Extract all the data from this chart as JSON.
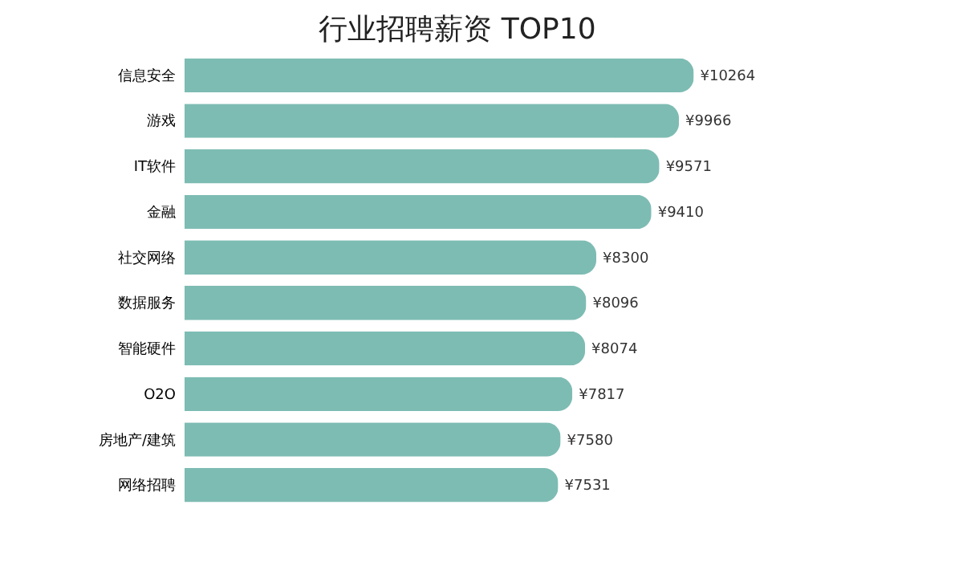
{
  "chart_data": {
    "type": "bar",
    "orientation": "horizontal",
    "title": "行业招聘薪资 TOP10",
    "categories": [
      "信息安全",
      "游戏",
      "IT软件",
      "金融",
      "社交网络",
      "数据服务",
      "智能硬件",
      "O2O",
      "房地产/建筑",
      "网络招聘"
    ],
    "values": [
      10264,
      9966,
      9571,
      9410,
      8300,
      8096,
      8074,
      7817,
      7580,
      7531
    ],
    "value_labels": [
      "¥10264",
      "¥9966",
      "¥9571",
      "¥9410",
      "¥8300",
      "¥8096",
      "¥8074",
      "¥7817",
      "¥7580",
      "¥7531"
    ],
    "color": "#7dbcb3",
    "grid": false,
    "tick_labels": "y"
  }
}
